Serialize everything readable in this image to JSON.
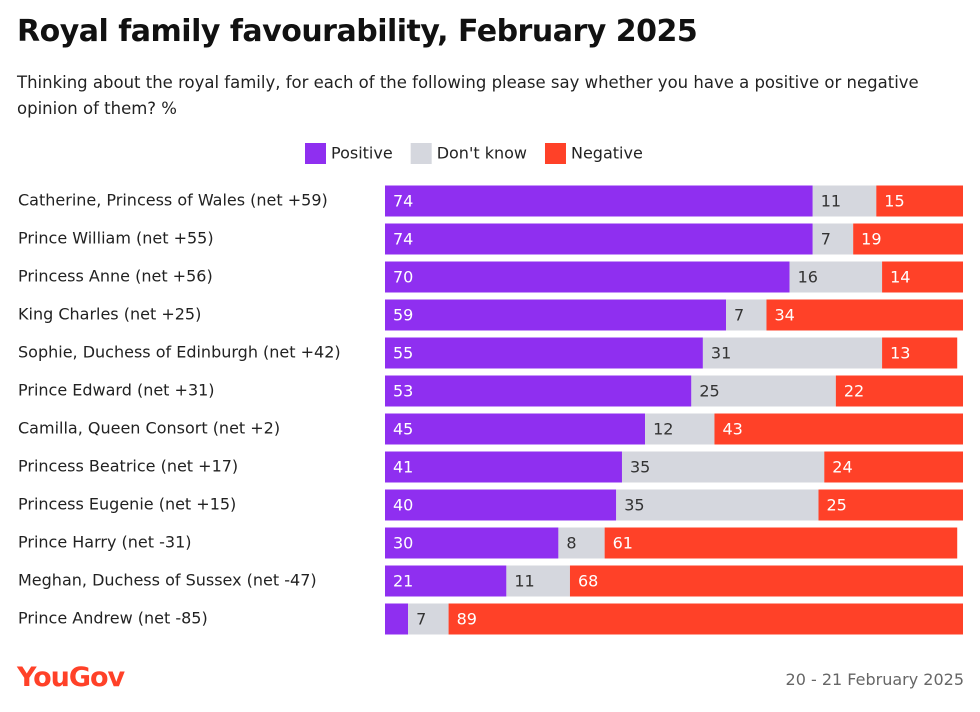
{
  "chart_data": {
    "type": "stacked_barh",
    "title": "Royal family favourability, February 2025",
    "subtitle": "Thinking about the royal family, for each of the following please say whether you have a positive or negative opinion of them? %",
    "categories": [
      "Catherine, Princess of Wales (net +59)",
      "Prince William (net +55)",
      "Princess Anne (net +56)",
      "King Charles (net +25)",
      "Sophie, Duchess of Edinburgh (net +42)",
      "Prince Edward (net +31)",
      "Camilla, Queen Consort (net +2)",
      "Princess Beatrice (net +17)",
      "Princess Eugenie (net +15)",
      "Prince Harry (net -31)",
      "Meghan, Duchess of Sussex (net -47)",
      "Prince Andrew (net -85)"
    ],
    "series": [
      {
        "name": "Positive",
        "color": "#8f2ff0",
        "values": [
          74,
          74,
          70,
          59,
          55,
          53,
          45,
          41,
          40,
          30,
          21,
          4
        ]
      },
      {
        "name": "Don't know",
        "color": "#d5d7de",
        "values": [
          11,
          7,
          16,
          7,
          31,
          25,
          12,
          35,
          35,
          8,
          11,
          7
        ]
      },
      {
        "name": "Negative",
        "color": "#ff4128",
        "values": [
          15,
          19,
          14,
          34,
          13,
          22,
          43,
          24,
          25,
          61,
          68,
          89
        ]
      }
    ],
    "xlim": [
      0,
      100
    ],
    "logo": "YouGov",
    "date": "20 - 21 February 2025"
  }
}
